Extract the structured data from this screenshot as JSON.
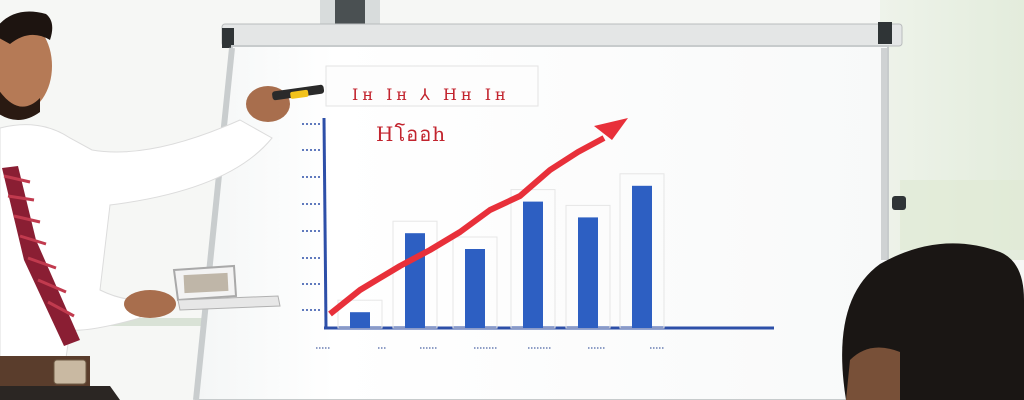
{
  "whiteboard": {
    "title": "Hโออh",
    "header_strip": "Ιн  Ιн  ⅄  Ηн  Ιн"
  },
  "chart_data": {
    "type": "bar",
    "title": "Hโออh",
    "xlabel": "",
    "ylabel": "",
    "categories": [
      "",
      "",
      "",
      "",
      "",
      ""
    ],
    "values": [
      1,
      6,
      5,
      8,
      7,
      9
    ],
    "ylim": [
      0,
      10
    ],
    "trend": {
      "type": "line",
      "direction": "up",
      "color": "#e8303a"
    },
    "bar_color": "#2d5fc2",
    "grid": false
  },
  "colors": {
    "board": "#ffffff",
    "frame": "#2f3436",
    "trend_line": "#e8303a",
    "bars": "#2d5fc2",
    "shirt": "#ffffff",
    "tie": "#8a1e33"
  }
}
